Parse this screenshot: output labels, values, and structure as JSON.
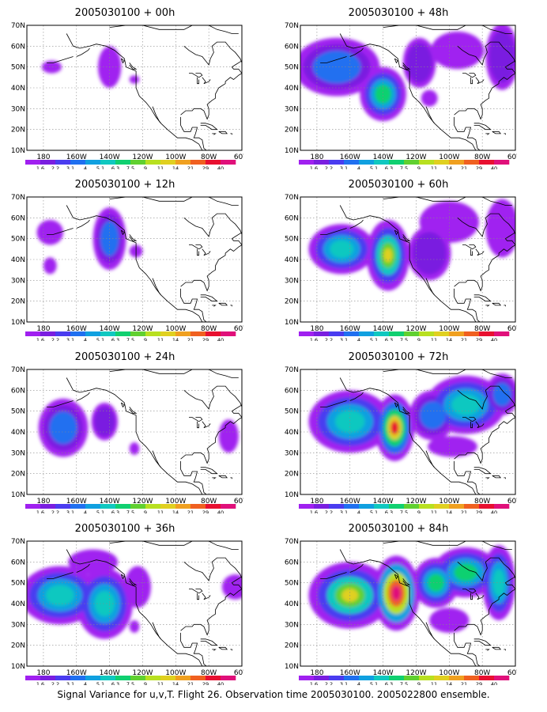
{
  "figure": {
    "caption": "Signal Variance for u,v,T. Flight 26. Observation time 2005030100. 2005022800 ensemble.",
    "lat_labels": [
      "70N",
      "60N",
      "50N",
      "40N",
      "30N",
      "20N",
      "10N"
    ],
    "lon_labels": [
      "180",
      "160W",
      "140W",
      "120W",
      "100W",
      "80W",
      "60W"
    ],
    "colorbar": {
      "labels": [
        "1.6",
        "2.2",
        "3.1",
        "4",
        "5.1",
        "6.3",
        "7.5",
        "9",
        "11",
        "14",
        "21",
        "29",
        "40"
      ],
      "colors": [
        "#a020f0",
        "#7a1ee0",
        "#4a3cf0",
        "#2070f0",
        "#10a0e0",
        "#10c8c0",
        "#10d070",
        "#60d030",
        "#b8e020",
        "#e0d020",
        "#f0a020",
        "#f06020",
        "#e81030",
        "#e0107a"
      ]
    }
  },
  "chart_data": [
    {
      "type": "heatmap",
      "title": "2005030100 + 00h",
      "lead_hours": 0,
      "blobs": [
        [
          175,
          50,
          6,
          3,
          0.9
        ],
        [
          140,
          50,
          7,
          10,
          1.4
        ],
        [
          125,
          44,
          3,
          2,
          0.7
        ]
      ]
    },
    {
      "type": "heatmap",
      "title": "2005030100 + 48h",
      "lead_hours": 48,
      "blobs": [
        [
          168,
          50,
          26,
          14,
          2.2
        ],
        [
          140,
          37,
          14,
          13,
          2.6
        ],
        [
          118,
          52,
          10,
          12,
          1.6
        ],
        [
          95,
          58,
          16,
          9,
          1.2
        ],
        [
          68,
          55,
          10,
          16,
          1.6
        ],
        [
          112,
          35,
          5,
          4,
          1.2
        ]
      ]
    },
    {
      "type": "heatmap",
      "title": "2005030100 + 12h",
      "lead_hours": 12,
      "blobs": [
        [
          176,
          53,
          8,
          6,
          1.1
        ],
        [
          176,
          37,
          4,
          4,
          1.0
        ],
        [
          140,
          50,
          10,
          15,
          2.0
        ],
        [
          124,
          44,
          4,
          3,
          0.9
        ]
      ]
    },
    {
      "type": "heatmap",
      "title": "2005030100 + 60h",
      "lead_hours": 60,
      "blobs": [
        [
          165,
          45,
          20,
          12,
          2.4
        ],
        [
          137,
          42,
          13,
          17,
          3.6
        ],
        [
          112,
          43,
          13,
          13,
          1.5
        ],
        [
          100,
          58,
          18,
          10,
          1.1
        ],
        [
          68,
          55,
          10,
          14,
          1.3
        ]
      ]
    },
    {
      "type": "heatmap",
      "title": "2005030100 + 24h",
      "lead_hours": 24,
      "blobs": [
        [
          168,
          42,
          15,
          14,
          2.2
        ],
        [
          143,
          45,
          8,
          9,
          1.8
        ],
        [
          125,
          32,
          3,
          3,
          1.0
        ],
        [
          68,
          38,
          6,
          8,
          1.2
        ]
      ]
    },
    {
      "type": "heatmap",
      "title": "2005030100 + 72h",
      "lead_hours": 72,
      "blobs": [
        [
          160,
          45,
          25,
          15,
          2.5
        ],
        [
          133,
          42,
          12,
          16,
          4.6
        ],
        [
          110,
          48,
          14,
          12,
          2.0
        ],
        [
          90,
          53,
          24,
          14,
          2.5
        ],
        [
          68,
          58,
          10,
          10,
          2.0
        ],
        [
          98,
          33,
          15,
          5,
          1.1
        ]
      ]
    },
    {
      "type": "heatmap",
      "title": "2005030100 + 36h",
      "lead_hours": 36,
      "blobs": [
        [
          170,
          44,
          24,
          14,
          2.4
        ],
        [
          143,
          40,
          17,
          17,
          2.4
        ],
        [
          123,
          48,
          8,
          10,
          1.2
        ],
        [
          125,
          29,
          3,
          3,
          1.0
        ],
        [
          64,
          48,
          8,
          6,
          1.2
        ],
        [
          150,
          60,
          15,
          6,
          1.0
        ]
      ]
    },
    {
      "type": "heatmap",
      "title": "2005030100 + 84h",
      "lead_hours": 84,
      "blobs": [
        [
          160,
          44,
          25,
          16,
          3.2
        ],
        [
          132,
          45,
          14,
          18,
          5.6
        ],
        [
          108,
          50,
          14,
          12,
          2.6
        ],
        [
          90,
          55,
          20,
          12,
          2.6
        ],
        [
          70,
          50,
          10,
          18,
          2.4
        ],
        [
          100,
          32,
          12,
          6,
          1.4
        ]
      ]
    }
  ]
}
